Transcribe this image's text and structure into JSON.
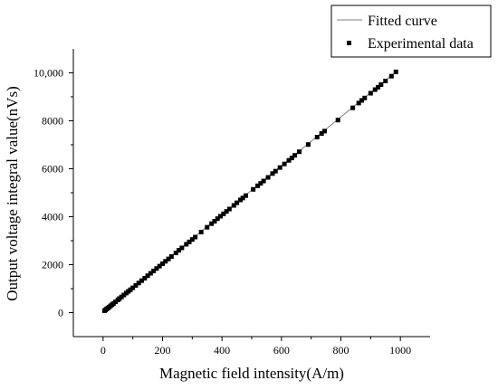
{
  "chart_data": {
    "type": "scatter",
    "title": "",
    "xlabel": "Magnetic field intensity(A/m)",
    "ylabel": "Output voltage integral value(nVs)",
    "xlim": [
      -100,
      1100
    ],
    "ylim": [
      -1000,
      11000
    ],
    "xticks": [
      0,
      200,
      400,
      600,
      800,
      1000
    ],
    "xtick_labels": [
      "0",
      "200",
      "400",
      "600",
      "800",
      "1000"
    ],
    "yticks": [
      0,
      2000,
      4000,
      6000,
      8000,
      10000
    ],
    "ytick_labels": [
      "0",
      "2000",
      "4000",
      "6000",
      "8000",
      "10,000"
    ],
    "grid": false,
    "legend": {
      "position": "top-right",
      "entries": [
        "Fitted curve",
        "Experimental data"
      ]
    },
    "series": [
      {
        "name": "Fitted curve",
        "type": "line",
        "color": "#808080",
        "x": [
          5,
          985
        ],
        "y": [
          80,
          10040
        ]
      },
      {
        "name": "Experimental data",
        "type": "scatter",
        "color": "#000000",
        "marker": "square",
        "x": [
          5,
          8,
          12,
          16,
          20,
          25,
          30,
          35,
          42,
          50,
          55,
          62,
          70,
          78,
          85,
          92,
          100,
          110,
          120,
          130,
          140,
          150,
          160,
          170,
          180,
          190,
          200,
          210,
          220,
          230,
          245,
          255,
          265,
          280,
          290,
          300,
          310,
          330,
          350,
          365,
          375,
          385,
          395,
          405,
          415,
          425,
          440,
          450,
          462,
          470,
          480,
          505,
          520,
          530,
          540,
          555,
          570,
          580,
          595,
          610,
          625,
          635,
          645,
          660,
          690,
          720,
          735,
          745,
          790,
          840,
          860,
          870,
          880,
          900,
          915,
          925,
          935,
          950,
          970,
          985
        ],
        "y": [
          80,
          110,
          150,
          190,
          230,
          280,
          330,
          380,
          450,
          530,
          585,
          655,
          735,
          815,
          885,
          955,
          1035,
          1135,
          1235,
          1335,
          1435,
          1540,
          1640,
          1740,
          1840,
          1940,
          2040,
          2140,
          2240,
          2340,
          2490,
          2600,
          2700,
          2850,
          2950,
          3050,
          3150,
          3360,
          3560,
          3710,
          3810,
          3920,
          4020,
          4120,
          4220,
          4320,
          4470,
          4580,
          4700,
          4780,
          4880,
          5140,
          5290,
          5390,
          5490,
          5640,
          5800,
          5900,
          6050,
          6200,
          6350,
          6450,
          6560,
          6710,
          7010,
          7320,
          7470,
          7570,
          8030,
          8540,
          8740,
          8850,
          8950,
          9150,
          9300,
          9400,
          9510,
          9660,
          9860,
          10040
        ]
      }
    ]
  }
}
